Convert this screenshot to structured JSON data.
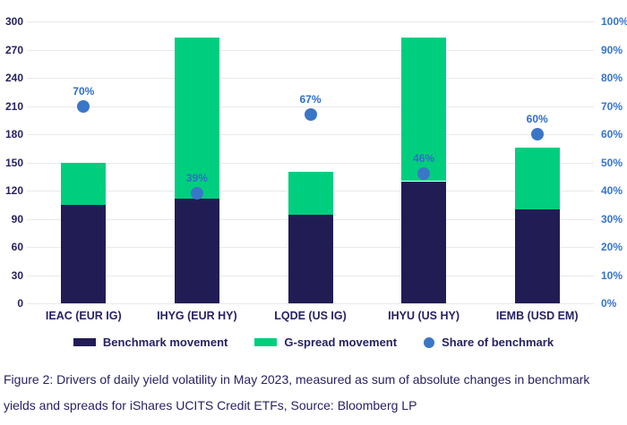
{
  "chart_data": {
    "type": "bar",
    "stacked": true,
    "grid": true,
    "legend_position": "bottom",
    "categories": [
      "IEAC (EUR IG)",
      "IHYG (EUR HY)",
      "LQDE (US IG)",
      "IHYU (US HY)",
      "IEMB (USD EM)"
    ],
    "series": [
      {
        "name": "Benchmark movement",
        "type": "bar",
        "axis": "left",
        "color": "#221c55",
        "values": [
          105,
          111,
          94,
          130,
          100
        ]
      },
      {
        "name": "G-spread movement",
        "type": "bar",
        "axis": "left",
        "color": "#00ce7f",
        "values": [
          45,
          172,
          46,
          153,
          66
        ]
      },
      {
        "name": "Share of benchmark",
        "type": "scatter",
        "axis": "right",
        "color": "#3a76c8",
        "values": [
          70,
          39,
          67,
          46,
          60
        ],
        "labels": [
          "70%",
          "39%",
          "67%",
          "46%",
          "60%"
        ]
      }
    ],
    "stack_totals": [
      150,
      283,
      140,
      283,
      166
    ],
    "left_axis": {
      "min": 0,
      "max": 300,
      "step": 30,
      "ticks": [
        "0",
        "30",
        "60",
        "90",
        "120",
        "150",
        "180",
        "210",
        "240",
        "270",
        "300"
      ]
    },
    "right_axis": {
      "min": 0,
      "max": 100,
      "step": 10,
      "ticks": [
        "0%",
        "10%",
        "20%",
        "30%",
        "40%",
        "50%",
        "60%",
        "70%",
        "80%",
        "90%",
        "100%"
      ]
    }
  },
  "colors": {
    "benchmark_bar": "#221c55",
    "gspread_bar": "#00ce7f",
    "share_dot": "#3a76c8",
    "left_axis_text": "#262262",
    "right_axis_text": "#3575cd",
    "gridline": "#e9e9ec",
    "caption_text": "#262262"
  },
  "caption": "Figure 2: Drivers of daily yield volatility in May 2023, measured as sum of absolute changes in benchmark yields and spreads for iShares UCITS Credit ETFs, Source: Bloomberg LP"
}
